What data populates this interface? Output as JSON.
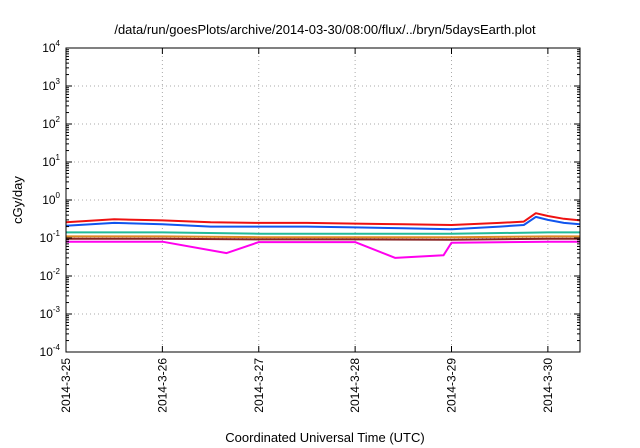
{
  "chart_data": {
    "type": "line",
    "title": "/data/run/goesPlots/archive/2014-03-30/08:00/flux/../bryn/5daysEarth.plot",
    "xlabel": "Coordinated Universal Time (UTC)",
    "ylabel": "cGy/day",
    "yscale": "log",
    "ylim": [
      0.0001,
      10000
    ],
    "y_ticks": [
      {
        "base": "10",
        "exp": "-4",
        "value": 0.0001
      },
      {
        "base": "10",
        "exp": "-3",
        "value": 0.001
      },
      {
        "base": "10",
        "exp": "-2",
        "value": 0.01
      },
      {
        "base": "10",
        "exp": "-1",
        "value": 0.1
      },
      {
        "base": "10",
        "exp": "0",
        "value": 1
      },
      {
        "base": "10",
        "exp": "1",
        "value": 10
      },
      {
        "base": "10",
        "exp": "2",
        "value": 100
      },
      {
        "base": "10",
        "exp": "3",
        "value": 1000
      },
      {
        "base": "10",
        "exp": "4",
        "value": 10000
      }
    ],
    "xlim": [
      "2014-03-25 00:00",
      "2014-03-30 08:00"
    ],
    "x_ticks": [
      "2014-3-25",
      "2014-3-26",
      "2014-3-27",
      "2014-3-28",
      "2014-3-29",
      "2014-3-30"
    ],
    "grid": true,
    "legend": "none",
    "series": [
      {
        "color": "#ee1111",
        "x": [
          "2014-03-25 00:00",
          "2014-03-25 12:00",
          "2014-03-26 00:00",
          "2014-03-26 12:00",
          "2014-03-27 00:00",
          "2014-03-27 12:00",
          "2014-03-28 00:00",
          "2014-03-28 12:00",
          "2014-03-29 00:00",
          "2014-03-29 12:00",
          "2014-03-29 18:00",
          "2014-03-29 21:00",
          "2014-03-30 00:00",
          "2014-03-30 04:00",
          "2014-03-30 08:00"
        ],
        "values": [
          0.26,
          0.31,
          0.29,
          0.26,
          0.25,
          0.25,
          0.24,
          0.23,
          0.22,
          0.25,
          0.27,
          0.45,
          0.38,
          0.32,
          0.29
        ]
      },
      {
        "color": "#1155ee",
        "x": [
          "2014-03-25 00:00",
          "2014-03-25 12:00",
          "2014-03-26 00:00",
          "2014-03-26 12:00",
          "2014-03-27 00:00",
          "2014-03-27 12:00",
          "2014-03-28 00:00",
          "2014-03-28 12:00",
          "2014-03-29 00:00",
          "2014-03-29 12:00",
          "2014-03-29 18:00",
          "2014-03-29 21:00",
          "2014-03-30 00:00",
          "2014-03-30 04:00",
          "2014-03-30 08:00"
        ],
        "values": [
          0.21,
          0.25,
          0.23,
          0.2,
          0.2,
          0.2,
          0.19,
          0.18,
          0.17,
          0.2,
          0.22,
          0.36,
          0.3,
          0.25,
          0.23
        ]
      },
      {
        "color": "#22bb99",
        "x": [
          "2014-03-25 00:00",
          "2014-03-26 00:00",
          "2014-03-27 00:00",
          "2014-03-28 00:00",
          "2014-03-29 00:00",
          "2014-03-30 00:00",
          "2014-03-30 08:00"
        ],
        "values": [
          0.14,
          0.14,
          0.13,
          0.13,
          0.13,
          0.14,
          0.14
        ]
      },
      {
        "color": "#dd8822",
        "x": [
          "2014-03-25 00:00",
          "2014-03-26 00:00",
          "2014-03-27 00:00",
          "2014-03-28 00:00",
          "2014-03-29 00:00",
          "2014-03-30 00:00",
          "2014-03-30 08:00"
        ],
        "values": [
          0.11,
          0.11,
          0.105,
          0.105,
          0.105,
          0.11,
          0.11
        ]
      },
      {
        "color": "#882222",
        "x": [
          "2014-03-25 00:00",
          "2014-03-26 00:00",
          "2014-03-27 00:00",
          "2014-03-28 00:00",
          "2014-03-29 00:00",
          "2014-03-30 00:00",
          "2014-03-30 08:00"
        ],
        "values": [
          0.095,
          0.095,
          0.092,
          0.092,
          0.09,
          0.095,
          0.095
        ]
      },
      {
        "color": "#ff00ee",
        "x": [
          "2014-03-25 00:00",
          "2014-03-26 00:00",
          "2014-03-26 16:00",
          "2014-03-27 00:00",
          "2014-03-28 00:00",
          "2014-03-28 10:00",
          "2014-03-28 22:00",
          "2014-03-29 00:00",
          "2014-03-30 00:00",
          "2014-03-30 08:00"
        ],
        "values": [
          0.08,
          0.08,
          0.04,
          0.078,
          0.078,
          0.03,
          0.035,
          0.075,
          0.08,
          0.08
        ]
      }
    ]
  }
}
